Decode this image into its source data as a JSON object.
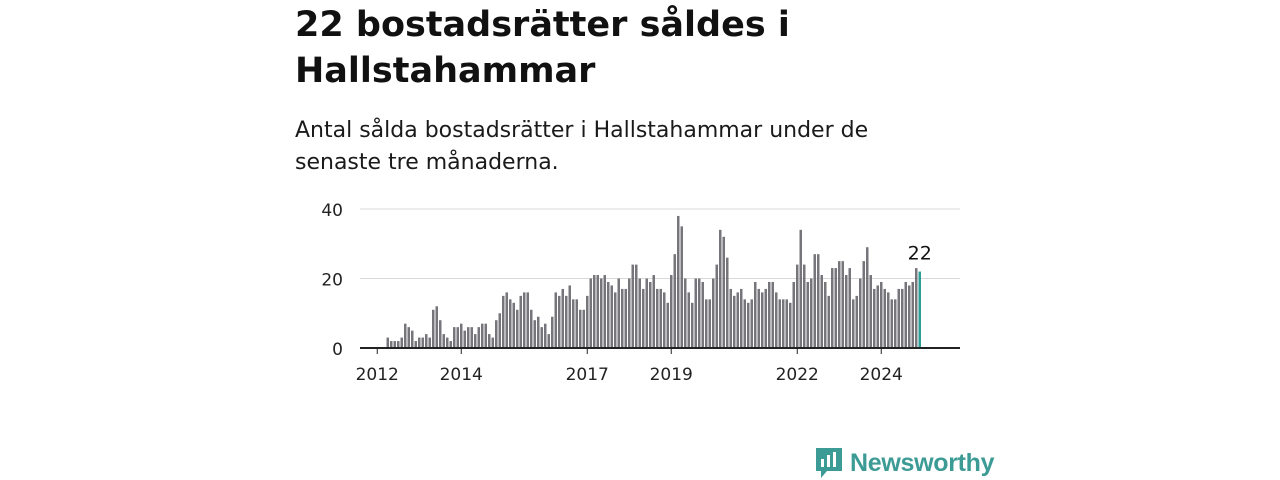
{
  "title": "22 bostadsrätter såldes i Hallstahammar",
  "subtitle": "Antal sålda bostadsrätter i Hallstahammar under de senaste tre månaderna.",
  "brand": {
    "name": "Newsworthy",
    "icon": "newsworthy-logo-icon",
    "color": "#3d9b95"
  },
  "chart_data": {
    "type": "bar",
    "ylim": [
      0,
      40
    ],
    "y_ticks": [
      0,
      20,
      40
    ],
    "x_ticks": [
      "2012",
      "2014",
      "2017",
      "2019",
      "2022",
      "2024"
    ],
    "bar_color": "#76757b",
    "highlight_color": "#2a9d96",
    "grid": true,
    "last_value_label": "22",
    "values": [
      3,
      2,
      2,
      2,
      3,
      7,
      6,
      5,
      2,
      3,
      3,
      4,
      3,
      11,
      12,
      8,
      4,
      3,
      2,
      6,
      6,
      7,
      5,
      6,
      6,
      4,
      6,
      7,
      7,
      4,
      3,
      8,
      10,
      15,
      16,
      14,
      13,
      11,
      15,
      16,
      16,
      11,
      8,
      9,
      6,
      7,
      4,
      9,
      16,
      15,
      17,
      15,
      18,
      14,
      14,
      11,
      11,
      15,
      20,
      21,
      21,
      20,
      21,
      19,
      18,
      16,
      20,
      17,
      17,
      20,
      24,
      24,
      20,
      17,
      20,
      19,
      21,
      17,
      17,
      16,
      13,
      21,
      27,
      38,
      35,
      20,
      16,
      13,
      20,
      20,
      19,
      14,
      14,
      20,
      24,
      34,
      32,
      26,
      17,
      15,
      16,
      17,
      14,
      13,
      14,
      19,
      17,
      16,
      17,
      19,
      19,
      16,
      14,
      14,
      14,
      13,
      19,
      24,
      34,
      24,
      19,
      20,
      27,
      27,
      21,
      19,
      15,
      23,
      23,
      25,
      25,
      21,
      23,
      14,
      15,
      20,
      25,
      29,
      21,
      17,
      18,
      19,
      17,
      16,
      14,
      14,
      17,
      17,
      19,
      18,
      19,
      23,
      22
    ]
  }
}
